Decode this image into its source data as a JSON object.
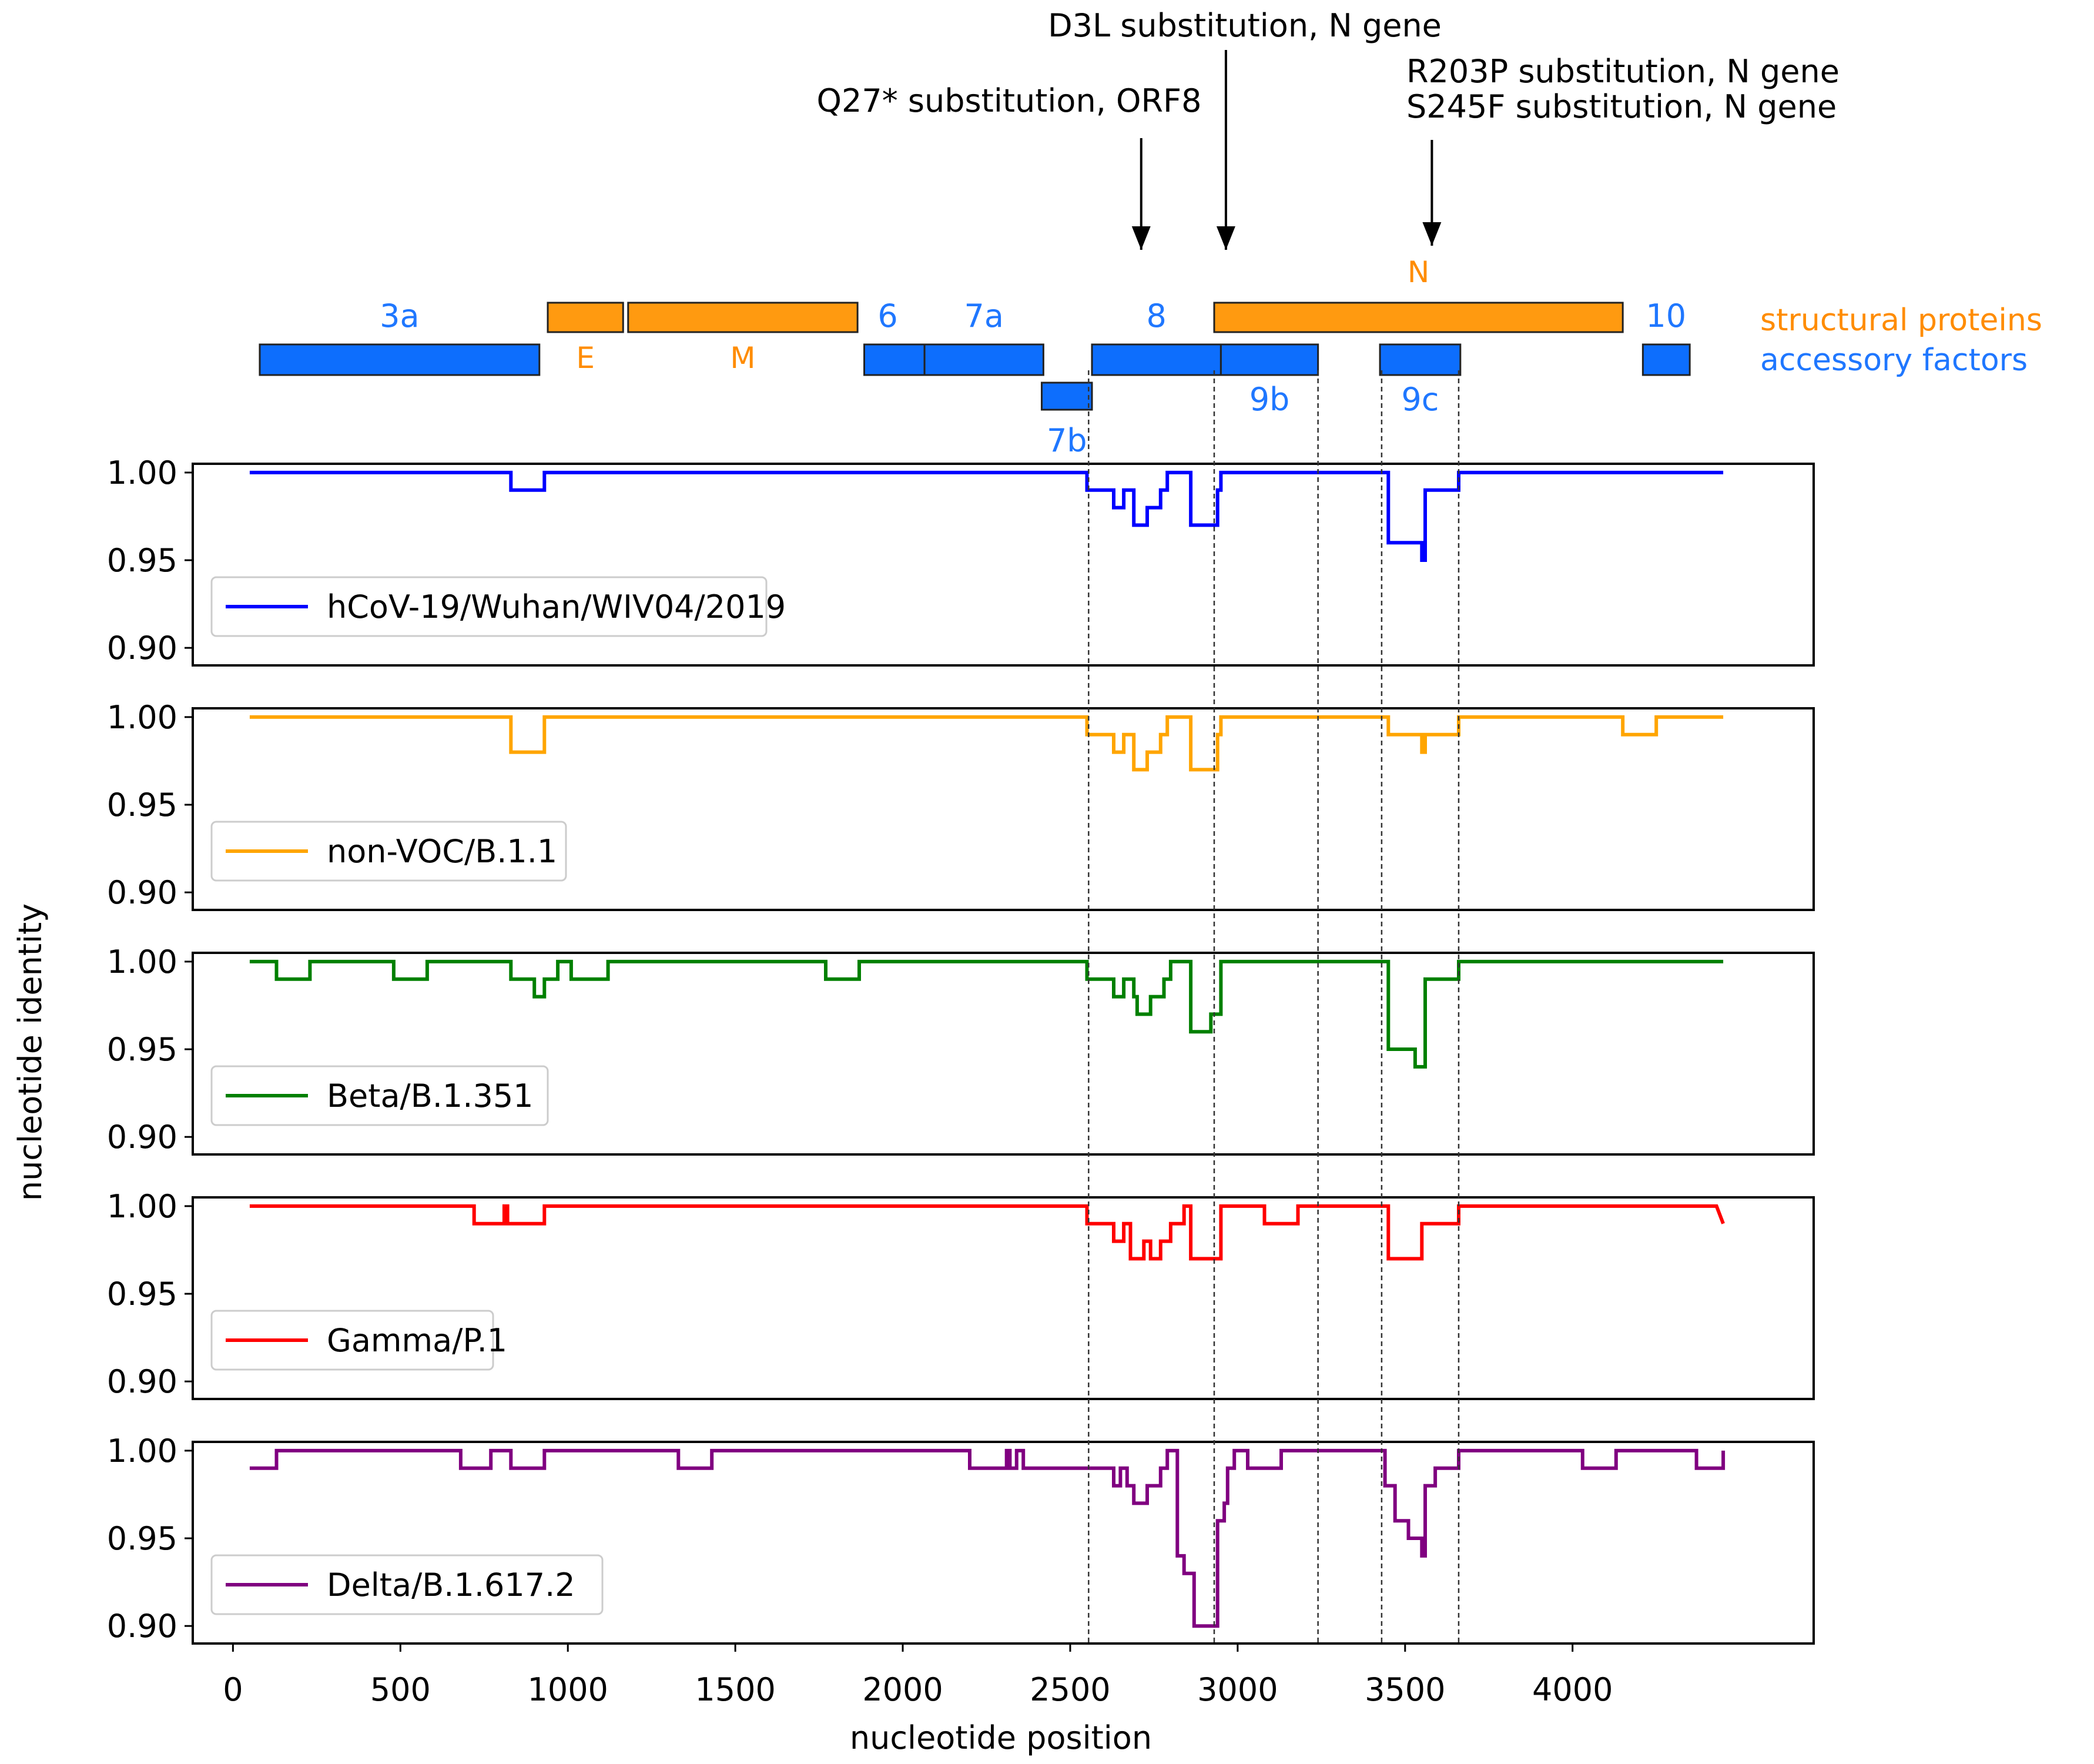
{
  "chart_data": {
    "type": "line",
    "xlabel": "nucleotide position",
    "ylabel": "nucleotide identity",
    "xlim": [
      -120,
      4720
    ],
    "ylim": [
      0.89,
      1.005
    ],
    "x_ticks": [
      0,
      500,
      1000,
      1500,
      2000,
      2500,
      3000,
      3500,
      4000
    ],
    "x_tick_labels": [
      "0",
      "500",
      "1000",
      "1500",
      "2000",
      "2500",
      "3000",
      "3500",
      "4000"
    ],
    "y_ticks": [
      1.0,
      0.95,
      0.9
    ],
    "y_tick_labels": [
      "1.00",
      "0.95",
      "0.90"
    ],
    "legend_position": "lower-left",
    "colors": {
      "structural": "#ff8c00",
      "structural_fill": "#ff9a10",
      "accessory": "#1f77ff",
      "accessory_fill": "#0d6efd"
    },
    "genome_map": {
      "legend": {
        "structural": "structural proteins",
        "accessory": "accessory factors"
      },
      "structural": [
        {
          "name": "E",
          "start": 940,
          "end": 1165
        },
        {
          "name": "M",
          "start": 1180,
          "end": 1865
        },
        {
          "name": "N",
          "start": 2930,
          "end": 4150
        }
      ],
      "accessory": [
        {
          "name": "3a",
          "start": 80,
          "end": 915,
          "row": 2
        },
        {
          "name": "6",
          "start": 1885,
          "end": 2065,
          "row": 2
        },
        {
          "name": "7a",
          "start": 2065,
          "end": 2420,
          "row": 2
        },
        {
          "name": "7b",
          "start": 2415,
          "end": 2565,
          "row": 3
        },
        {
          "name": "8",
          "start": 2565,
          "end": 2950,
          "row": 2
        },
        {
          "name": "9b",
          "start": 2950,
          "end": 3240,
          "row": 2
        },
        {
          "name": "9c",
          "start": 3425,
          "end": 3665,
          "row": 2
        },
        {
          "name": "10",
          "start": 4210,
          "end": 4350,
          "row": 2
        }
      ]
    },
    "annotations": [
      {
        "x": 2712,
        "text": [
          "Q27* substitution, ORF8"
        ]
      },
      {
        "x": 2965,
        "text": [
          "D3L substitution, N gene"
        ]
      },
      {
        "x": 3580,
        "text": [
          "R203P substitution, N gene",
          "S245F substitution, N gene"
        ]
      }
    ],
    "vlines": [
      2555,
      2930,
      3240,
      3430,
      3660
    ],
    "series": [
      {
        "name": "hCoV-19/Wuhan/WIV04/2019",
        "color": "#0000ff",
        "points": [
          [
            50,
            1.0
          ],
          [
            830,
            1.0
          ],
          [
            830,
            0.99
          ],
          [
            930,
            0.99
          ],
          [
            930,
            1.0
          ],
          [
            2550,
            1.0
          ],
          [
            2550,
            0.99
          ],
          [
            2630,
            0.99
          ],
          [
            2630,
            0.98
          ],
          [
            2660,
            0.98
          ],
          [
            2660,
            0.99
          ],
          [
            2690,
            0.99
          ],
          [
            2690,
            0.97
          ],
          [
            2730,
            0.97
          ],
          [
            2730,
            0.98
          ],
          [
            2770,
            0.98
          ],
          [
            2770,
            0.99
          ],
          [
            2790,
            0.99
          ],
          [
            2790,
            1.0
          ],
          [
            2860,
            1.0
          ],
          [
            2860,
            0.97
          ],
          [
            2940,
            0.97
          ],
          [
            2940,
            0.99
          ],
          [
            2950,
            0.99
          ],
          [
            2950,
            1.0
          ],
          [
            3450,
            1.0
          ],
          [
            3450,
            0.96
          ],
          [
            3550,
            0.96
          ],
          [
            3550,
            0.95
          ],
          [
            3560,
            0.95
          ],
          [
            3560,
            0.99
          ],
          [
            3660,
            0.99
          ],
          [
            3660,
            1.0
          ],
          [
            4450,
            1.0
          ]
        ]
      },
      {
        "name": "non-VOC/B.1.1",
        "color": "#ffa500",
        "points": [
          [
            50,
            1.0
          ],
          [
            830,
            1.0
          ],
          [
            830,
            0.98
          ],
          [
            930,
            0.98
          ],
          [
            930,
            1.0
          ],
          [
            2550,
            1.0
          ],
          [
            2550,
            0.99
          ],
          [
            2630,
            0.99
          ],
          [
            2630,
            0.98
          ],
          [
            2660,
            0.98
          ],
          [
            2660,
            0.99
          ],
          [
            2690,
            0.99
          ],
          [
            2690,
            0.97
          ],
          [
            2730,
            0.97
          ],
          [
            2730,
            0.98
          ],
          [
            2770,
            0.98
          ],
          [
            2770,
            0.99
          ],
          [
            2790,
            0.99
          ],
          [
            2790,
            1.0
          ],
          [
            2860,
            1.0
          ],
          [
            2860,
            0.97
          ],
          [
            2940,
            0.97
          ],
          [
            2940,
            0.99
          ],
          [
            2950,
            0.99
          ],
          [
            2950,
            1.0
          ],
          [
            3450,
            1.0
          ],
          [
            3450,
            0.99
          ],
          [
            3550,
            0.99
          ],
          [
            3550,
            0.98
          ],
          [
            3560,
            0.98
          ],
          [
            3560,
            0.99
          ],
          [
            3660,
            0.99
          ],
          [
            3660,
            1.0
          ],
          [
            4150,
            1.0
          ],
          [
            4150,
            0.99
          ],
          [
            4250,
            0.99
          ],
          [
            4250,
            1.0
          ],
          [
            4450,
            1.0
          ]
        ]
      },
      {
        "name": "Beta/B.1.351",
        "color": "#008000",
        "points": [
          [
            50,
            1.0
          ],
          [
            130,
            1.0
          ],
          [
            130,
            0.99
          ],
          [
            230,
            0.99
          ],
          [
            230,
            1.0
          ],
          [
            480,
            1.0
          ],
          [
            480,
            0.99
          ],
          [
            580,
            0.99
          ],
          [
            580,
            1.0
          ],
          [
            830,
            1.0
          ],
          [
            830,
            0.99
          ],
          [
            900,
            0.99
          ],
          [
            900,
            0.98
          ],
          [
            930,
            0.98
          ],
          [
            930,
            0.99
          ],
          [
            970,
            0.99
          ],
          [
            970,
            1.0
          ],
          [
            1010,
            1.0
          ],
          [
            1010,
            0.99
          ],
          [
            1120,
            0.99
          ],
          [
            1120,
            1.0
          ],
          [
            1770,
            1.0
          ],
          [
            1770,
            0.99
          ],
          [
            1870,
            0.99
          ],
          [
            1870,
            1.0
          ],
          [
            2550,
            1.0
          ],
          [
            2550,
            0.99
          ],
          [
            2630,
            0.99
          ],
          [
            2630,
            0.98
          ],
          [
            2660,
            0.98
          ],
          [
            2660,
            0.99
          ],
          [
            2690,
            0.99
          ],
          [
            2690,
            0.98
          ],
          [
            2700,
            0.98
          ],
          [
            2700,
            0.97
          ],
          [
            2740,
            0.97
          ],
          [
            2740,
            0.98
          ],
          [
            2780,
            0.98
          ],
          [
            2780,
            0.99
          ],
          [
            2800,
            0.99
          ],
          [
            2800,
            1.0
          ],
          [
            2860,
            1.0
          ],
          [
            2860,
            0.96
          ],
          [
            2920,
            0.96
          ],
          [
            2920,
            0.97
          ],
          [
            2950,
            0.97
          ],
          [
            2950,
            1.0
          ],
          [
            3450,
            1.0
          ],
          [
            3450,
            0.95
          ],
          [
            3530,
            0.95
          ],
          [
            3530,
            0.94
          ],
          [
            3560,
            0.94
          ],
          [
            3560,
            0.99
          ],
          [
            3660,
            0.99
          ],
          [
            3660,
            1.0
          ],
          [
            4450,
            1.0
          ]
        ]
      },
      {
        "name": "Gamma/P.1",
        "color": "#ff0000",
        "points": [
          [
            50,
            1.0
          ],
          [
            720,
            1.0
          ],
          [
            720,
            0.99
          ],
          [
            810,
            0.99
          ],
          [
            810,
            1.0
          ],
          [
            820,
            1.0
          ],
          [
            820,
            0.99
          ],
          [
            930,
            0.99
          ],
          [
            930,
            1.0
          ],
          [
            2550,
            1.0
          ],
          [
            2550,
            0.99
          ],
          [
            2630,
            0.99
          ],
          [
            2630,
            0.98
          ],
          [
            2660,
            0.98
          ],
          [
            2660,
            0.99
          ],
          [
            2680,
            0.99
          ],
          [
            2680,
            0.97
          ],
          [
            2720,
            0.97
          ],
          [
            2720,
            0.98
          ],
          [
            2740,
            0.98
          ],
          [
            2740,
            0.97
          ],
          [
            2770,
            0.97
          ],
          [
            2770,
            0.98
          ],
          [
            2800,
            0.98
          ],
          [
            2800,
            0.99
          ],
          [
            2840,
            0.99
          ],
          [
            2840,
            1.0
          ],
          [
            2860,
            1.0
          ],
          [
            2860,
            0.97
          ],
          [
            2950,
            0.97
          ],
          [
            2950,
            1.0
          ],
          [
            3080,
            1.0
          ],
          [
            3080,
            0.99
          ],
          [
            3180,
            0.99
          ],
          [
            3180,
            1.0
          ],
          [
            3450,
            1.0
          ],
          [
            3450,
            0.97
          ],
          [
            3550,
            0.97
          ],
          [
            3550,
            0.99
          ],
          [
            3660,
            0.99
          ],
          [
            3660,
            1.0
          ],
          [
            4430,
            1.0
          ],
          [
            4450,
            0.99
          ]
        ]
      },
      {
        "name": "Delta/B.1.617.2",
        "color": "#800080",
        "points": [
          [
            50,
            0.99
          ],
          [
            130,
            0.99
          ],
          [
            130,
            1.0
          ],
          [
            680,
            1.0
          ],
          [
            680,
            0.99
          ],
          [
            770,
            0.99
          ],
          [
            770,
            1.0
          ],
          [
            830,
            1.0
          ],
          [
            830,
            0.99
          ],
          [
            930,
            0.99
          ],
          [
            930,
            1.0
          ],
          [
            1330,
            1.0
          ],
          [
            1330,
            0.99
          ],
          [
            1430,
            0.99
          ],
          [
            1430,
            1.0
          ],
          [
            2200,
            1.0
          ],
          [
            2200,
            0.99
          ],
          [
            2310,
            0.99
          ],
          [
            2310,
            1.0
          ],
          [
            2320,
            1.0
          ],
          [
            2320,
            0.99
          ],
          [
            2340,
            0.99
          ],
          [
            2340,
            1.0
          ],
          [
            2360,
            1.0
          ],
          [
            2360,
            0.99
          ],
          [
            2550,
            0.99
          ],
          [
            2630,
            0.99
          ],
          [
            2630,
            0.98
          ],
          [
            2650,
            0.98
          ],
          [
            2650,
            0.99
          ],
          [
            2670,
            0.99
          ],
          [
            2670,
            0.98
          ],
          [
            2690,
            0.98
          ],
          [
            2690,
            0.97
          ],
          [
            2730,
            0.97
          ],
          [
            2730,
            0.98
          ],
          [
            2770,
            0.98
          ],
          [
            2770,
            0.99
          ],
          [
            2790,
            0.99
          ],
          [
            2790,
            1.0
          ],
          [
            2820,
            1.0
          ],
          [
            2820,
            0.94
          ],
          [
            2840,
            0.94
          ],
          [
            2840,
            0.93
          ],
          [
            2870,
            0.93
          ],
          [
            2870,
            0.9
          ],
          [
            2940,
            0.9
          ],
          [
            2940,
            0.96
          ],
          [
            2960,
            0.96
          ],
          [
            2960,
            0.97
          ],
          [
            2970,
            0.97
          ],
          [
            2970,
            0.99
          ],
          [
            2990,
            0.99
          ],
          [
            2990,
            1.0
          ],
          [
            3030,
            1.0
          ],
          [
            3030,
            0.99
          ],
          [
            3130,
            0.99
          ],
          [
            3130,
            1.0
          ],
          [
            3440,
            1.0
          ],
          [
            3440,
            0.98
          ],
          [
            3470,
            0.98
          ],
          [
            3470,
            0.96
          ],
          [
            3510,
            0.96
          ],
          [
            3510,
            0.95
          ],
          [
            3550,
            0.95
          ],
          [
            3550,
            0.94
          ],
          [
            3560,
            0.94
          ],
          [
            3560,
            0.98
          ],
          [
            3590,
            0.98
          ],
          [
            3590,
            0.99
          ],
          [
            3660,
            0.99
          ],
          [
            3660,
            1.0
          ],
          [
            4030,
            1.0
          ],
          [
            4030,
            0.99
          ],
          [
            4130,
            0.99
          ],
          [
            4130,
            1.0
          ],
          [
            4370,
            1.0
          ],
          [
            4370,
            0.99
          ],
          [
            4450,
            0.99
          ],
          [
            4450,
            1.0
          ]
        ]
      }
    ]
  }
}
